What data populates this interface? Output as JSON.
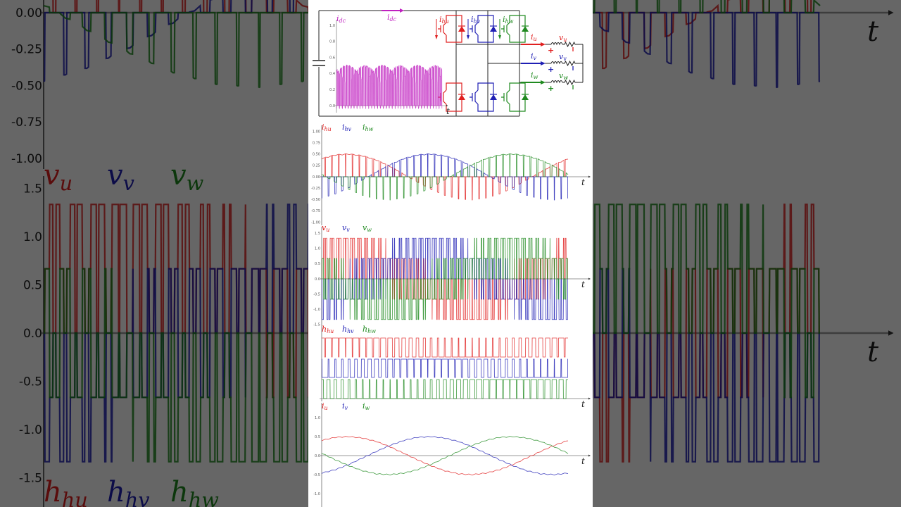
{
  "colors": {
    "u": "#e02020",
    "v": "#1f1fb4",
    "w": "#1f8a1f",
    "dc": "#c020c0",
    "axis": "#9a9a9a",
    "wire": "#222222"
  },
  "circuit": {
    "idc_label": {
      "base": "i",
      "sub": "dc"
    },
    "leg_labels": [
      {
        "base": "i",
        "sub": "hu"
      },
      {
        "base": "i",
        "sub": "hv"
      },
      {
        "base": "i",
        "sub": "hw"
      }
    ],
    "output_currents": [
      {
        "base": "i",
        "sub": "u"
      },
      {
        "base": "i",
        "sub": "v"
      },
      {
        "base": "i",
        "sub": "w"
      }
    ],
    "load_voltages": [
      {
        "base": "v",
        "sub": "u"
      },
      {
        "base": "v",
        "sub": "v"
      },
      {
        "base": "v",
        "sub": "w"
      }
    ],
    "plus_sign": "+",
    "minus_sign": "−"
  },
  "pwm_carrier_periods": 36,
  "chart_data": [
    {
      "id": "idc",
      "type": "line",
      "xlabel": "t",
      "ylim": [
        0,
        1.1
      ],
      "yticks": [
        "0.0",
        "0.2",
        "0.4",
        "0.6",
        "0.8",
        "1.0"
      ],
      "series": [
        {
          "name": {
            "base": "i",
            "sub": "dc"
          },
          "color_key": "dc"
        }
      ]
    },
    {
      "id": "ih",
      "type": "line",
      "xlabel": "t",
      "ylim": [
        -1,
        1
      ],
      "yticks": [
        "1.00",
        "0.75",
        "0.50",
        "0.25",
        "0.00",
        "-0.25",
        "-0.50",
        "-0.75",
        "-1.00"
      ],
      "series": [
        {
          "name": {
            "base": "i",
            "sub": "hu"
          },
          "color_key": "u"
        },
        {
          "name": {
            "base": "i",
            "sub": "hv"
          },
          "color_key": "v"
        },
        {
          "name": {
            "base": "i",
            "sub": "hw"
          },
          "color_key": "w"
        }
      ]
    },
    {
      "id": "v",
      "type": "line",
      "xlabel": "t",
      "ylim": [
        -1.5,
        1.5
      ],
      "yticks": [
        "1.5",
        "1.0",
        "0.5",
        "0.0",
        "-0.5",
        "-1.0",
        "-1.5"
      ],
      "series": [
        {
          "name": {
            "base": "v",
            "sub": "u"
          },
          "color_key": "u"
        },
        {
          "name": {
            "base": "v",
            "sub": "v"
          },
          "color_key": "v"
        },
        {
          "name": {
            "base": "v",
            "sub": "w"
          },
          "color_key": "w"
        }
      ]
    },
    {
      "id": "h",
      "type": "line",
      "xlabel": "t",
      "series": [
        {
          "name": {
            "base": "h",
            "sub": "hu"
          },
          "color_key": "u"
        },
        {
          "name": {
            "base": "h",
            "sub": "hv"
          },
          "color_key": "v"
        },
        {
          "name": {
            "base": "h",
            "sub": "hw"
          },
          "color_key": "w"
        }
      ]
    },
    {
      "id": "i",
      "type": "line",
      "xlabel": "t",
      "ylim": [
        -1.1,
        1.1
      ],
      "yticks": [
        "1.0",
        "0.5",
        "0.0",
        "-0.5",
        "-1.0"
      ],
      "series": [
        {
          "name": {
            "base": "i",
            "sub": "u"
          },
          "color_key": "u",
          "values": [
            0.4,
            0.48,
            0.5,
            0.46,
            0.37,
            0.23,
            0.06,
            -0.11,
            -0.27,
            -0.4,
            -0.48,
            -0.5,
            -0.46,
            -0.37,
            -0.23,
            -0.06,
            0.11,
            0.27,
            0.4
          ]
        },
        {
          "name": {
            "base": "i",
            "sub": "v"
          },
          "color_key": "v",
          "values": [
            -0.46,
            -0.37,
            -0.23,
            -0.06,
            0.11,
            0.27,
            0.4,
            0.48,
            0.5,
            0.46,
            0.37,
            0.23,
            0.06,
            -0.11,
            -0.27,
            -0.4,
            -0.48,
            -0.5,
            -0.46
          ]
        },
        {
          "name": {
            "base": "i",
            "sub": "w"
          },
          "color_key": "w",
          "values": [
            0.06,
            -0.11,
            -0.27,
            -0.4,
            -0.48,
            -0.5,
            -0.46,
            -0.37,
            -0.23,
            -0.06,
            0.11,
            0.27,
            0.4,
            0.48,
            0.5,
            0.46,
            0.37,
            0.23,
            0.06
          ]
        }
      ]
    }
  ]
}
